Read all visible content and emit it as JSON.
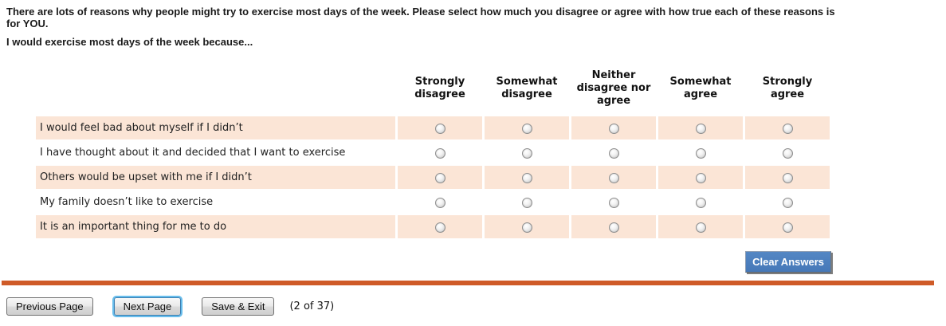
{
  "page": {
    "intro_line1": "There are lots of reasons why people might try to exercise most days of the week. Please select how much you disagree or agree with how true each of these reasons is",
    "intro_line2": "for YOU.",
    "prompt": "I would exercise most days of the week because..."
  },
  "matrix": {
    "options": [
      "Strongly disagree",
      "Somewhat disagree",
      "Neither disagree nor agree",
      "Somewhat agree",
      "Strongly agree"
    ],
    "rows": [
      {
        "label": "I would feel bad about myself if I didn’t",
        "selected": null
      },
      {
        "label": "I have thought about it and decided that I want to exercise",
        "selected": null
      },
      {
        "label": "Others would be upset with me if I didn’t",
        "selected": null
      },
      {
        "label": "My family doesn’t like to exercise",
        "selected": null
      },
      {
        "label": "It is an important thing for me to do",
        "selected": null
      }
    ]
  },
  "actions": {
    "clear_label": "Clear Answers"
  },
  "footer": {
    "previous_label": "Previous Page",
    "next_label": "Next Page",
    "save_label": "Save & Exit",
    "page_indicator": "(2 of 37)"
  },
  "colors": {
    "row_highlight": "#fbe5d6",
    "divider_orange": "#cf5b28",
    "clear_button_blue": "#4a7dbe",
    "focus_ring_blue": "#67bdec"
  }
}
